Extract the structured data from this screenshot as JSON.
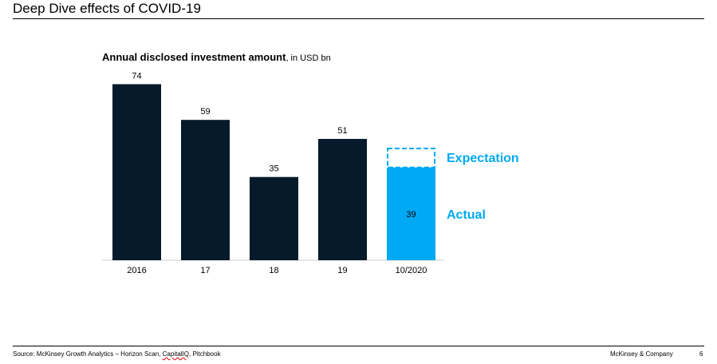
{
  "page": {
    "title": "Deep Dive effects of COVID-19",
    "page_number": "6",
    "brand": "McKinsey & Company",
    "source_prefix": "Source: McKinsey Growth Analytics – Horizon Scan, ",
    "source_capiq": "CapitalIQ",
    "source_suffix": ", Pitchbook"
  },
  "chart_data": {
    "type": "bar",
    "title": "Annual disclosed investment amount",
    "subtitle": ", in USD bn",
    "categories": [
      "2016",
      "17",
      "18",
      "19",
      "10/2020"
    ],
    "values": [
      74,
      59,
      35,
      51,
      39
    ],
    "value_labels": [
      "74",
      "59",
      "35",
      "51",
      "39"
    ],
    "expectation_value": 47,
    "expectation_label": "Expectation",
    "actual_label": "Actual",
    "ylim": [
      0,
      80
    ],
    "grid": false,
    "colors": {
      "bar": "#061A2B",
      "highlight": "#00A9F4",
      "baseline": "#cccccc",
      "text": "#000000"
    }
  }
}
